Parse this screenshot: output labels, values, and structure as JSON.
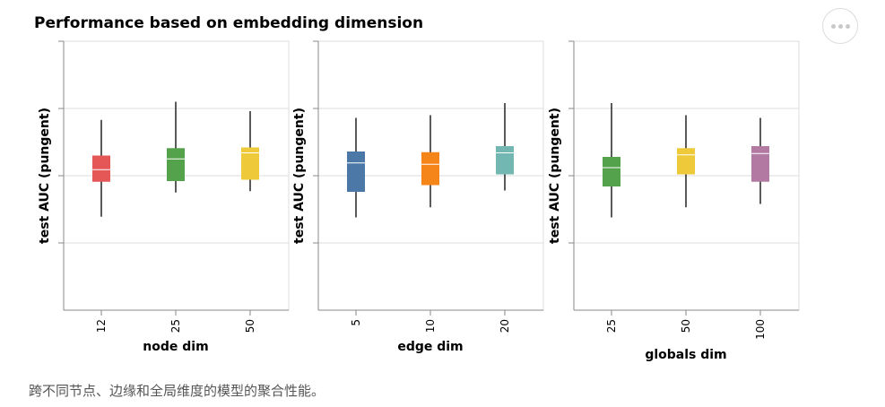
{
  "caption": "跨不同节点、边缘和全局维度的模型的聚合性能。",
  "menu": {
    "icon": "more-horizontal-icon"
  },
  "chart_data": {
    "type": "boxplot",
    "title": "Performance based on embedding dimension",
    "ylabel": "test AUC (pungent)",
    "panels": [
      {
        "xlabel": "node dim",
        "categories": [
          "12",
          "25",
          "50"
        ],
        "colors": [
          "#e45756",
          "#54a24b",
          "#eeca3b"
        ],
        "boxes": [
          {
            "min": 0.195,
            "q1": 0.455,
            "median": 0.545,
            "q3": 0.65,
            "max": 0.915
          },
          {
            "min": 0.375,
            "q1": 0.46,
            "median": 0.625,
            "q3": 0.705,
            "max": 1.05
          },
          {
            "min": 0.385,
            "q1": 0.47,
            "median": 0.67,
            "q3": 0.71,
            "max": 0.98
          }
        ]
      },
      {
        "xlabel": "edge dim",
        "categories": [
          "5",
          "10",
          "20"
        ],
        "colors": [
          "#4c78a8",
          "#f58518",
          "#72b7b2"
        ],
        "boxes": [
          {
            "min": 0.19,
            "q1": 0.38,
            "median": 0.595,
            "q3": 0.68,
            "max": 0.93
          },
          {
            "min": 0.265,
            "q1": 0.43,
            "median": 0.585,
            "q3": 0.675,
            "max": 0.95
          },
          {
            "min": 0.39,
            "q1": 0.51,
            "median": 0.67,
            "q3": 0.72,
            "max": 1.04
          }
        ]
      },
      {
        "xlabel": "globals dim",
        "categories": [
          "25",
          "50",
          "100"
        ],
        "colors": [
          "#54a24b",
          "#eeca3b",
          "#b279a2"
        ],
        "boxes": [
          {
            "min": 0.19,
            "q1": 0.42,
            "median": 0.56,
            "q3": 0.64,
            "max": 1.04
          },
          {
            "min": 0.265,
            "q1": 0.51,
            "median": 0.655,
            "q3": 0.705,
            "max": 0.95
          },
          {
            "min": 0.29,
            "q1": 0.455,
            "median": 0.665,
            "q3": 0.72,
            "max": 0.93
          }
        ]
      }
    ],
    "yticks": [
      0.0,
      0.5,
      1.0,
      1.5
    ],
    "ylim": [
      -0.5,
      1.5
    ],
    "grid": true
  }
}
